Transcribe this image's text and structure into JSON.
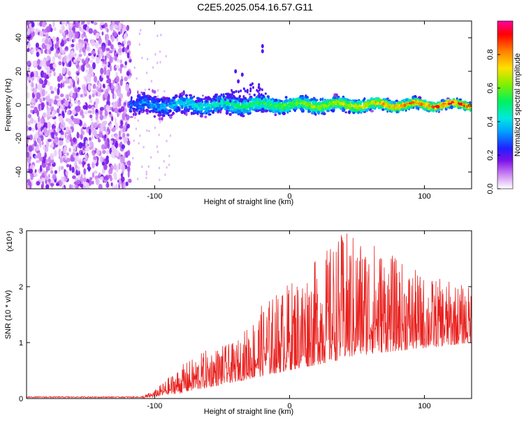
{
  "title": "C2E5.2025.054.16.57.G11",
  "top_plot": {
    "type": "heatmap",
    "xlabel": "Height of straight line (km)",
    "ylabel": "Frequency (Hz)",
    "xlim": [
      -195,
      135
    ],
    "ylim": [
      -50,
      50
    ],
    "x_ticks": [
      -100,
      0,
      100
    ],
    "y_ticks": [
      -40,
      -20,
      0,
      20,
      40
    ],
    "colorbar": {
      "label": "Normalized spectral amplitude",
      "range": [
        0,
        1
      ],
      "ticks": [
        "0.0",
        "0.2",
        "0.4",
        "0.6",
        "0.8"
      ],
      "tick_values": [
        0,
        0.2,
        0.4,
        0.6,
        0.8
      ],
      "colors": [
        "#ffffff",
        "#e8c8f8",
        "#c070f0",
        "#7a10e8",
        "#2020ff",
        "#00d8ff",
        "#00f080",
        "#80f000",
        "#ffe000",
        "#ff8000",
        "#ff0000",
        "#ff00a0"
      ]
    }
  },
  "bottom_plot": {
    "type": "line",
    "xlabel": "Height of straight line (km)",
    "ylabel": "SNR (10 * v/v)",
    "y_multiplier": "(x10⁴)",
    "xlim": [
      -195,
      135
    ],
    "ylim": [
      0,
      3
    ],
    "x_ticks": [
      -100,
      0,
      100
    ],
    "y_ticks": [
      0,
      1,
      2,
      3
    ],
    "color": "#e8211e"
  },
  "chart_data": [
    {
      "type": "heatmap",
      "xlabel": "Height of straight line (km)",
      "ylabel": "Frequency (Hz)",
      "xlim": [
        -195,
        135
      ],
      "ylim": [
        -50,
        50
      ],
      "noise_region_x": [
        -195,
        -118
      ],
      "signal_band_x": [
        -118,
        135
      ],
      "signal_center_hz": 0,
      "signal_halfwidth_hz": [
        6,
        2
      ],
      "colorbar_label": "Normalized spectral amplitude",
      "colorbar_range": [
        0,
        1
      ]
    },
    {
      "type": "line",
      "xlabel": "Height of straight line (km)",
      "ylabel": "SNR (10 * v/v)",
      "xlim": [
        -195,
        135
      ],
      "ylim": [
        0,
        3
      ],
      "envelope": {
        "x": [
          -195,
          -110,
          -100,
          -80,
          -60,
          -40,
          -20,
          0,
          20,
          40,
          60,
          80,
          100,
          120,
          135
        ],
        "y_peak": [
          0.03,
          0.04,
          0.15,
          0.6,
          0.9,
          1.0,
          1.7,
          2.1,
          2.5,
          3.0,
          2.9,
          2.5,
          2.2,
          2.1,
          2.0
        ],
        "y_base": [
          0.0,
          0.0,
          0.03,
          0.1,
          0.2,
          0.3,
          0.4,
          0.5,
          0.6,
          0.7,
          0.8,
          0.85,
          0.9,
          0.95,
          1.0
        ]
      }
    }
  ]
}
